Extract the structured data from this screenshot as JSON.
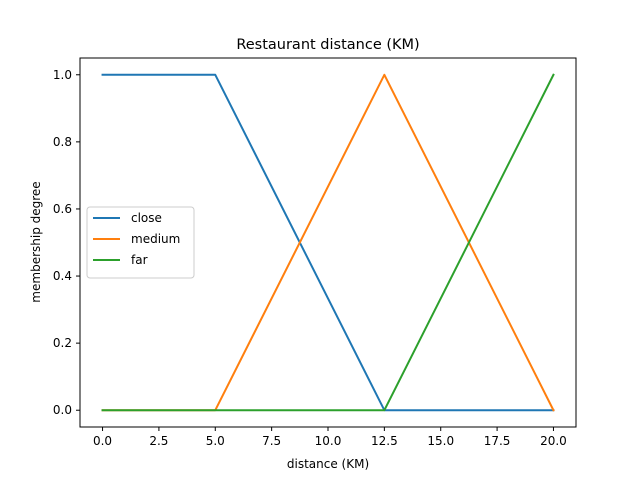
{
  "chart_data": {
    "type": "line",
    "title": "Restaurant distance (KM)",
    "xlabel": "distance (KM)",
    "ylabel": "membership degree",
    "xlim": [
      -1,
      21
    ],
    "ylim": [
      -0.05,
      1.05
    ],
    "xticks": [
      0.0,
      2.5,
      5.0,
      7.5,
      10.0,
      12.5,
      15.0,
      17.5,
      20.0
    ],
    "xtick_labels": [
      "0.0",
      "2.5",
      "5.0",
      "7.5",
      "10.0",
      "12.5",
      "15.0",
      "17.5",
      "20.0"
    ],
    "yticks": [
      0.0,
      0.2,
      0.4,
      0.6,
      0.8,
      1.0
    ],
    "ytick_labels": [
      "0.0",
      "0.2",
      "0.4",
      "0.6",
      "0.8",
      "1.0"
    ],
    "grid": false,
    "legend_position": "center-left",
    "series": [
      {
        "name": "close",
        "color": "#1f77b4",
        "x": [
          0,
          5,
          12.5,
          20
        ],
        "y": [
          1,
          1,
          0,
          0
        ]
      },
      {
        "name": "medium",
        "color": "#ff7f0e",
        "x": [
          0,
          5,
          12.5,
          20
        ],
        "y": [
          0,
          0,
          1,
          0
        ]
      },
      {
        "name": "far",
        "color": "#2ca02c",
        "x": [
          0,
          12.5,
          20
        ],
        "y": [
          0,
          0,
          1
        ]
      }
    ]
  }
}
